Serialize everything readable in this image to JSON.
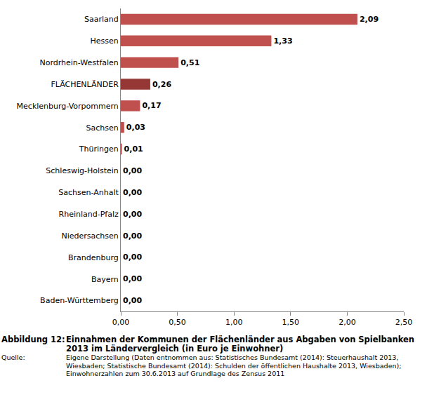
{
  "chart_data": {
    "type": "bar",
    "orientation": "horizontal",
    "title": "Einnahmen der Kommunen der Flächenländer aus Abgaben von Spielbanken 2013 im Ländervergleich (in Euro je Einwohner)",
    "annotations": [
      "Abbildung 12:",
      "Quelle:",
      "Eigene Darstellung (Daten entnommen aus: Statistisches Bundesamt (2014): Steuerhaushalt 2013, Wiesbaden; Statistische Bundesamt (2014): Schulden der öffentlichen Haushalte 2013, Wiesbaden); Einwohnerzahlen zum 30.6.2013 auf Grundlage des Zensus 2011"
    ],
    "categories": [
      "Saarland",
      "Hessen",
      "Nordrhein-Westfalen",
      "FLÄCHENLÄNDER",
      "Mecklenburg-Vorpommern",
      "Sachsen",
      "Thüringen",
      "Schleswig-Holstein",
      "Sachsen-Anhalt",
      "Rheinland-Pfalz",
      "Niedersachsen",
      "Brandenburg",
      "Bayern",
      "Baden-Württemberg"
    ],
    "values": [
      2.09,
      1.33,
      0.51,
      0.26,
      0.17,
      0.03,
      0.01,
      0,
      0,
      0,
      0,
      0,
      0,
      0
    ],
    "value_labels": [
      "2,09",
      "1,33",
      "0,51",
      "0,26",
      "0,17",
      "0,03",
      "0,01",
      "0,00",
      "0,00",
      "0,00",
      "0,00",
      "0,00",
      "0,00",
      "0,00"
    ],
    "colors": [
      "#c0504d",
      "#c0504d",
      "#c0504d",
      "#953735",
      "#c0504d",
      "#c0504d",
      "#c0504d",
      "#c0504d",
      "#c0504d",
      "#c0504d",
      "#c0504d",
      "#c0504d",
      "#c0504d",
      "#c0504d"
    ],
    "xlim": [
      0,
      2.5
    ],
    "xticks": [
      {
        "value": 0,
        "label": "0,00"
      },
      {
        "value": 0.5,
        "label": "0,50"
      },
      {
        "value": 1,
        "label": "1,00"
      },
      {
        "value": 1.5,
        "label": "1,50"
      },
      {
        "value": 2,
        "label": "2,00"
      },
      {
        "value": 2.5,
        "label": "2,50"
      }
    ],
    "data_labels": true,
    "grid": false
  }
}
